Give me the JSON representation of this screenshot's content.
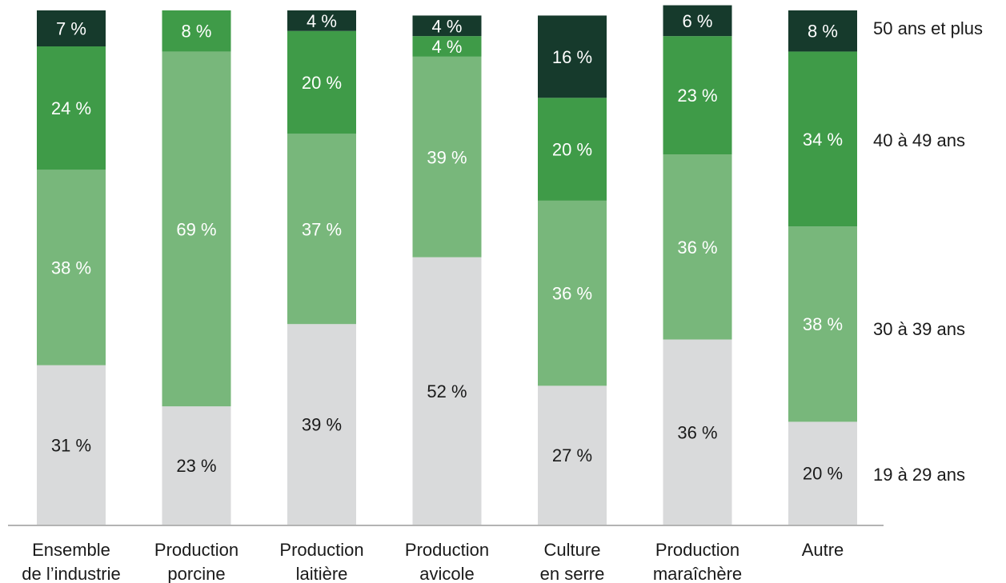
{
  "chart_data": {
    "type": "bar",
    "stacked": true,
    "percent": true,
    "categories": [
      [
        "Ensemble",
        "de l’industrie"
      ],
      [
        "Production",
        "porcine"
      ],
      [
        "Production",
        "laitière"
      ],
      [
        "Production",
        "avicole"
      ],
      [
        "Culture",
        "en serre"
      ],
      [
        "Production",
        "maraîchère"
      ],
      [
        "Autre"
      ]
    ],
    "series": [
      {
        "name": "19 à 29 ans",
        "color": "#d9dadb",
        "label_color": "#1a1a1a",
        "values": [
          31,
          23,
          39,
          52,
          27,
          36,
          20
        ],
        "labels": [
          "31 %",
          "23 %",
          "39 %",
          "52 %",
          "27 %",
          "36 %",
          "20 %"
        ]
      },
      {
        "name": "30 à 39 ans",
        "color": "#78b77b",
        "label_color": "#ffffff",
        "values": [
          38,
          69,
          37,
          39,
          36,
          36,
          38
        ],
        "labels": [
          "38 %",
          "69 %",
          "37 %",
          "39 %",
          "36 %",
          "36 %",
          "38 %"
        ]
      },
      {
        "name": "40 à 49 ans",
        "color": "#3f9b48",
        "label_color": "#ffffff",
        "values": [
          24,
          0,
          20,
          4,
          20,
          23,
          34
        ],
        "labels": [
          "24 %",
          "",
          "20 %",
          "4 %",
          "20 %",
          "23 %",
          "34 %"
        ]
      },
      {
        "name": "50 ans et plus",
        "color": "#163a2c",
        "label_color": "#ffffff",
        "values": [
          7,
          8,
          4,
          4,
          16,
          6,
          8
        ],
        "labels": [
          "7 %",
          "8 %",
          "4 %",
          "4 %",
          "16 %",
          "6 %",
          "8 %"
        ]
      }
    ],
    "series_overrides": [
      {
        "series": 3,
        "category": 1,
        "color": "#3f9b48"
      }
    ],
    "ylim": [
      0,
      100
    ],
    "grid": false,
    "legend": "right"
  }
}
